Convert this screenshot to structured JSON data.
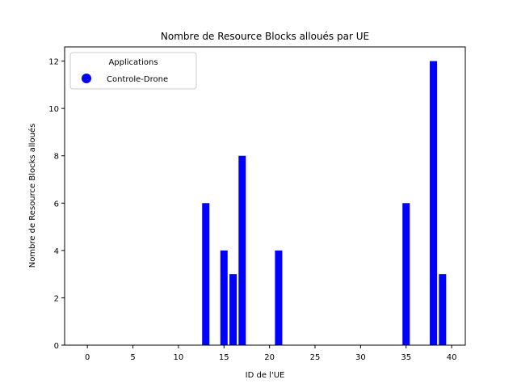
{
  "chart_data": {
    "type": "bar",
    "title": "Nombre de Resource Blocks alloués par UE",
    "xlabel": "ID de l'UE",
    "ylabel": "Nombre de Resource Blocks alloués",
    "xlim": [
      -2.5,
      41.5
    ],
    "ylim": [
      0,
      12.6
    ],
    "xticks": [
      0,
      5,
      10,
      15,
      20,
      25,
      30,
      35,
      40
    ],
    "yticks": [
      0,
      2,
      4,
      6,
      8,
      10,
      12
    ],
    "grid": false,
    "legend": {
      "title": "Applications",
      "placement": "top-left",
      "entries": [
        {
          "label": "Controle-Drone",
          "color": "#0000ff",
          "marker": "circle"
        }
      ]
    },
    "bar_width": 0.8,
    "series": [
      {
        "name": "Controle-Drone",
        "color": "#0000ff",
        "x": [
          13,
          15,
          16,
          17,
          21,
          35,
          38,
          39
        ],
        "values": [
          6,
          4,
          3,
          8,
          4,
          6,
          12,
          3
        ]
      }
    ]
  }
}
